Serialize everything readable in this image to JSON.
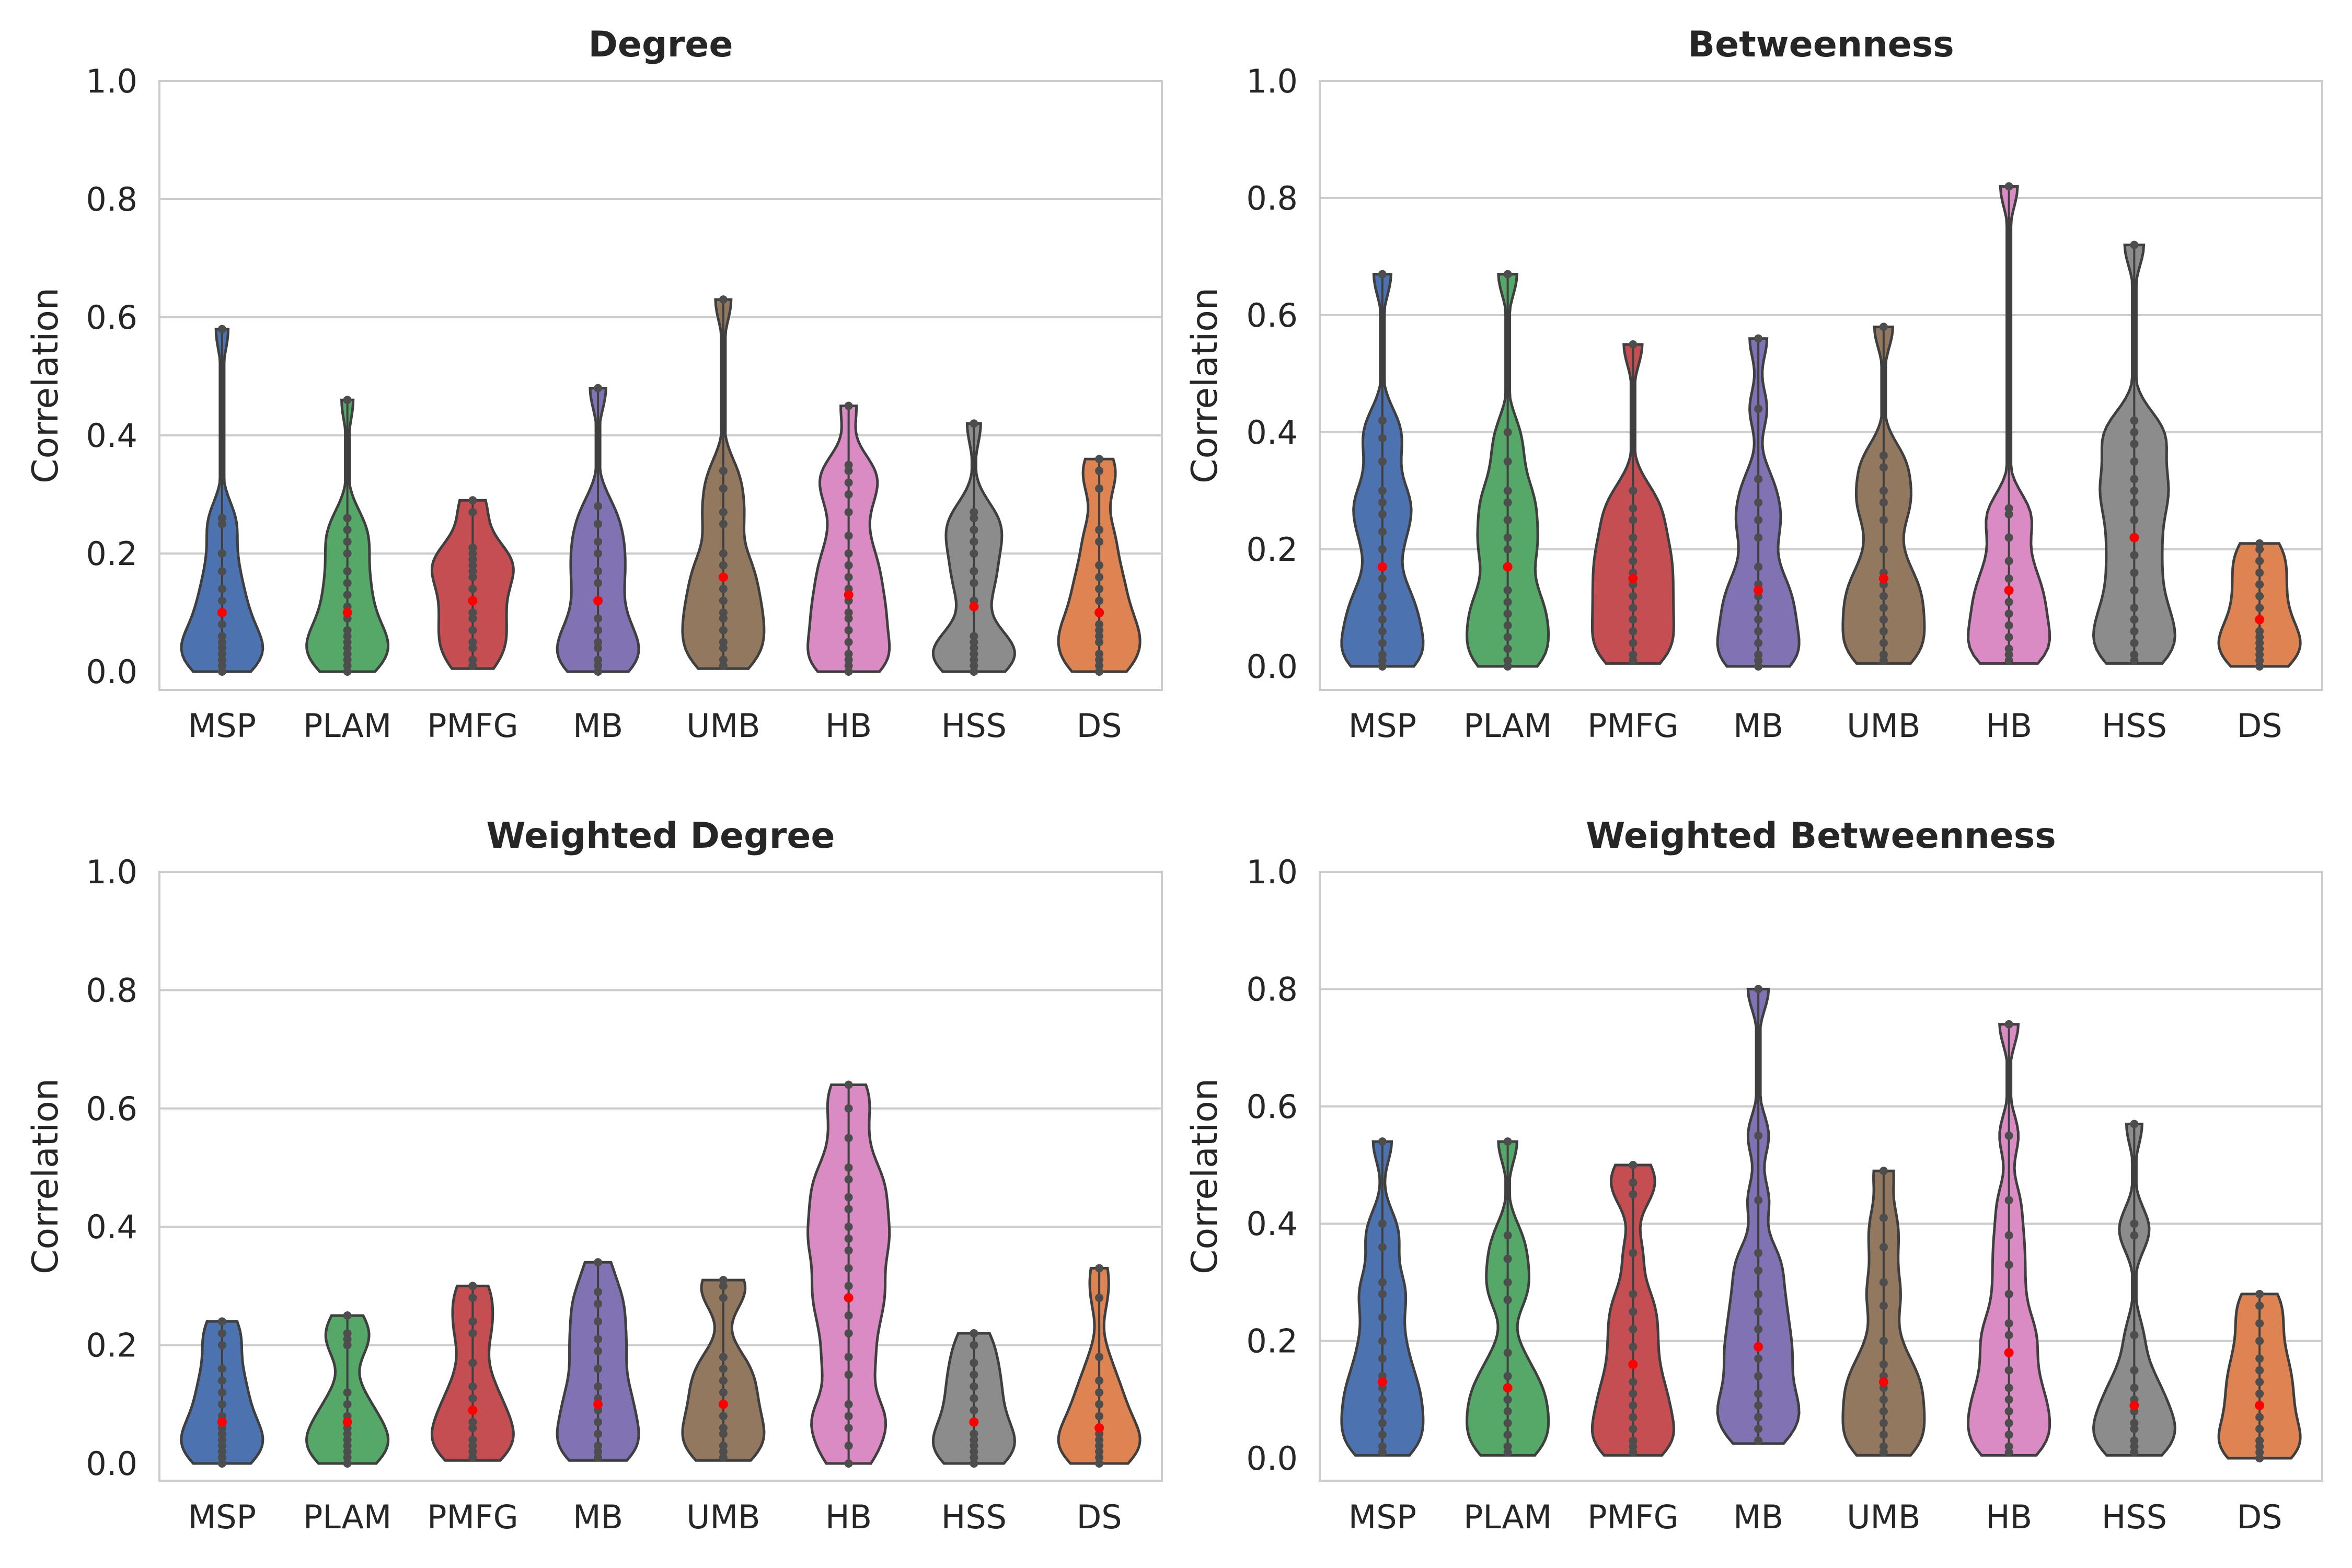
{
  "figure": {
    "ylabel": "Correlation",
    "categories": [
      "MSP",
      "PLAM",
      "PMFG",
      "MB",
      "UMB",
      "HB",
      "HSS",
      "DS"
    ],
    "colors": {
      "MSP": "#4c72b0",
      "PLAM": "#55a868",
      "PMFG": "#c44e52",
      "MB": "#8172b3",
      "UMB": "#937860",
      "HB": "#da8bc3",
      "HSS": "#8c8c8c",
      "DS": "#dd8452"
    },
    "mean_color": "#ff0000",
    "point_color": "#4d4d4d"
  },
  "chart_data": [
    {
      "type": "violin",
      "title": "Degree",
      "ylabel": "Correlation",
      "ylim": [
        0.0,
        1.0
      ],
      "yticks": [
        "0.0",
        "0.2",
        "0.4",
        "0.6",
        "0.8",
        "1.0"
      ],
      "grid": true,
      "categories": [
        "MSP",
        "PLAM",
        "PMFG",
        "MB",
        "UMB",
        "HB",
        "HSS",
        "DS"
      ],
      "series": [
        {
          "category": "MSP",
          "max": 0.58,
          "mean": 0.1,
          "points": [
            0.0,
            0.01,
            0.02,
            0.03,
            0.04,
            0.05,
            0.06,
            0.08,
            0.1,
            0.12,
            0.14,
            0.17,
            0.2,
            0.25,
            0.26,
            0.58
          ]
        },
        {
          "category": "PLAM",
          "max": 0.46,
          "mean": 0.1,
          "points": [
            0.0,
            0.01,
            0.02,
            0.03,
            0.04,
            0.05,
            0.06,
            0.07,
            0.09,
            0.11,
            0.13,
            0.15,
            0.17,
            0.2,
            0.22,
            0.24,
            0.26,
            0.46
          ]
        },
        {
          "category": "PMFG",
          "max": 0.29,
          "mean": 0.12,
          "points": [
            0.01,
            0.02,
            0.04,
            0.05,
            0.07,
            0.09,
            0.1,
            0.12,
            0.14,
            0.16,
            0.17,
            0.18,
            0.19,
            0.2,
            0.21,
            0.27,
            0.29
          ]
        },
        {
          "category": "MB",
          "max": 0.48,
          "mean": 0.12,
          "points": [
            0.0,
            0.01,
            0.02,
            0.04,
            0.05,
            0.07,
            0.09,
            0.12,
            0.15,
            0.17,
            0.2,
            0.22,
            0.25,
            0.28,
            0.48
          ]
        },
        {
          "category": "UMB",
          "max": 0.63,
          "mean": 0.16,
          "points": [
            0.01,
            0.02,
            0.04,
            0.05,
            0.07,
            0.09,
            0.1,
            0.12,
            0.14,
            0.16,
            0.18,
            0.2,
            0.25,
            0.27,
            0.31,
            0.34,
            0.63
          ]
        },
        {
          "category": "HB",
          "max": 0.45,
          "mean": 0.13,
          "points": [
            0.0,
            0.01,
            0.02,
            0.03,
            0.05,
            0.07,
            0.09,
            0.1,
            0.12,
            0.14,
            0.16,
            0.18,
            0.2,
            0.23,
            0.27,
            0.3,
            0.32,
            0.34,
            0.35,
            0.45
          ]
        },
        {
          "category": "HSS",
          "max": 0.42,
          "mean": 0.11,
          "points": [
            0.0,
            0.01,
            0.02,
            0.03,
            0.04,
            0.05,
            0.06,
            0.12,
            0.15,
            0.17,
            0.2,
            0.22,
            0.24,
            0.26,
            0.27,
            0.42
          ]
        },
        {
          "category": "DS",
          "max": 0.36,
          "mean": 0.1,
          "points": [
            0.0,
            0.01,
            0.02,
            0.03,
            0.05,
            0.06,
            0.07,
            0.08,
            0.1,
            0.12,
            0.14,
            0.16,
            0.18,
            0.22,
            0.24,
            0.31,
            0.34,
            0.36
          ]
        }
      ]
    },
    {
      "type": "violin",
      "title": "Betweenness",
      "ylabel": "Correlation",
      "ylim": [
        0.0,
        1.0
      ],
      "yticks": [
        "0.0",
        "0.2",
        "0.4",
        "0.6",
        "0.8",
        "1.0"
      ],
      "grid": true,
      "categories": [
        "MSP",
        "PLAM",
        "PMFG",
        "MB",
        "UMB",
        "HB",
        "HSS",
        "DS"
      ],
      "series": [
        {
          "category": "MSP",
          "max": 0.67,
          "mean": 0.17,
          "points": [
            0.0,
            0.01,
            0.02,
            0.04,
            0.06,
            0.08,
            0.1,
            0.12,
            0.15,
            0.2,
            0.23,
            0.26,
            0.28,
            0.3,
            0.35,
            0.39,
            0.42,
            0.67
          ]
        },
        {
          "category": "PLAM",
          "max": 0.67,
          "mean": 0.17,
          "points": [
            0.0,
            0.01,
            0.03,
            0.05,
            0.07,
            0.09,
            0.11,
            0.13,
            0.17,
            0.2,
            0.22,
            0.25,
            0.28,
            0.3,
            0.35,
            0.4,
            0.67
          ]
        },
        {
          "category": "PMFG",
          "max": 0.55,
          "mean": 0.15,
          "points": [
            0.01,
            0.02,
            0.04,
            0.06,
            0.08,
            0.1,
            0.12,
            0.14,
            0.16,
            0.18,
            0.2,
            0.22,
            0.25,
            0.27,
            0.3,
            0.55
          ]
        },
        {
          "category": "MB",
          "max": 0.56,
          "mean": 0.13,
          "points": [
            0.0,
            0.01,
            0.02,
            0.04,
            0.06,
            0.08,
            0.1,
            0.12,
            0.14,
            0.17,
            0.22,
            0.25,
            0.28,
            0.32,
            0.44,
            0.56
          ]
        },
        {
          "category": "UMB",
          "max": 0.58,
          "mean": 0.15,
          "points": [
            0.01,
            0.02,
            0.04,
            0.06,
            0.08,
            0.1,
            0.12,
            0.14,
            0.16,
            0.2,
            0.25,
            0.28,
            0.3,
            0.34,
            0.36,
            0.58
          ]
        },
        {
          "category": "HB",
          "max": 0.82,
          "mean": 0.13,
          "points": [
            0.01,
            0.02,
            0.03,
            0.05,
            0.07,
            0.09,
            0.11,
            0.13,
            0.15,
            0.18,
            0.22,
            0.26,
            0.27,
            0.82
          ]
        },
        {
          "category": "HSS",
          "max": 0.72,
          "mean": 0.22,
          "points": [
            0.01,
            0.02,
            0.04,
            0.06,
            0.08,
            0.1,
            0.13,
            0.16,
            0.19,
            0.22,
            0.25,
            0.28,
            0.3,
            0.32,
            0.35,
            0.38,
            0.4,
            0.42,
            0.72
          ]
        },
        {
          "category": "DS",
          "max": 0.21,
          "mean": 0.08,
          "points": [
            0.0,
            0.01,
            0.02,
            0.03,
            0.04,
            0.05,
            0.06,
            0.08,
            0.1,
            0.12,
            0.14,
            0.16,
            0.18,
            0.2,
            0.21
          ]
        }
      ]
    },
    {
      "type": "violin",
      "title": "Weighted Degree",
      "ylabel": "Correlation",
      "ylim": [
        0.0,
        1.0
      ],
      "yticks": [
        "0.0",
        "0.2",
        "0.4",
        "0.6",
        "0.8",
        "1.0"
      ],
      "grid": true,
      "categories": [
        "MSP",
        "PLAM",
        "PMFG",
        "MB",
        "UMB",
        "HB",
        "HSS",
        "DS"
      ],
      "series": [
        {
          "category": "MSP",
          "max": 0.24,
          "mean": 0.07,
          "points": [
            0.0,
            0.01,
            0.02,
            0.03,
            0.04,
            0.05,
            0.06,
            0.08,
            0.1,
            0.12,
            0.14,
            0.16,
            0.2,
            0.22,
            0.24
          ]
        },
        {
          "category": "PLAM",
          "max": 0.25,
          "mean": 0.07,
          "points": [
            0.0,
            0.01,
            0.02,
            0.03,
            0.04,
            0.05,
            0.06,
            0.08,
            0.1,
            0.12,
            0.2,
            0.21,
            0.22,
            0.25
          ]
        },
        {
          "category": "PMFG",
          "max": 0.3,
          "mean": 0.09,
          "points": [
            0.01,
            0.02,
            0.03,
            0.04,
            0.06,
            0.07,
            0.09,
            0.11,
            0.13,
            0.17,
            0.22,
            0.24,
            0.28,
            0.3
          ]
        },
        {
          "category": "MB",
          "max": 0.34,
          "mean": 0.1,
          "points": [
            0.01,
            0.02,
            0.03,
            0.05,
            0.07,
            0.09,
            0.11,
            0.13,
            0.16,
            0.19,
            0.21,
            0.24,
            0.27,
            0.29,
            0.34
          ]
        },
        {
          "category": "UMB",
          "max": 0.31,
          "mean": 0.1,
          "points": [
            0.01,
            0.02,
            0.03,
            0.05,
            0.06,
            0.08,
            0.1,
            0.12,
            0.14,
            0.16,
            0.18,
            0.28,
            0.3,
            0.31
          ]
        },
        {
          "category": "HB",
          "max": 0.64,
          "mean": 0.28,
          "points": [
            0.0,
            0.03,
            0.06,
            0.08,
            0.1,
            0.15,
            0.18,
            0.22,
            0.25,
            0.28,
            0.3,
            0.33,
            0.36,
            0.38,
            0.4,
            0.43,
            0.45,
            0.48,
            0.5,
            0.55,
            0.6,
            0.64
          ]
        },
        {
          "category": "HSS",
          "max": 0.22,
          "mean": 0.07,
          "points": [
            0.0,
            0.01,
            0.02,
            0.03,
            0.04,
            0.05,
            0.07,
            0.09,
            0.11,
            0.13,
            0.15,
            0.17,
            0.2,
            0.22
          ]
        },
        {
          "category": "DS",
          "max": 0.33,
          "mean": 0.06,
          "points": [
            0.0,
            0.01,
            0.02,
            0.03,
            0.04,
            0.05,
            0.06,
            0.08,
            0.1,
            0.12,
            0.14,
            0.18,
            0.28,
            0.33
          ]
        }
      ]
    },
    {
      "type": "violin",
      "title": "Weighted Betweenness",
      "ylabel": "Correlation",
      "ylim": [
        0.0,
        1.0
      ],
      "yticks": [
        "0.0",
        "0.2",
        "0.4",
        "0.6",
        "0.8",
        "1.0"
      ],
      "grid": true,
      "categories": [
        "MSP",
        "PLAM",
        "PMFG",
        "MB",
        "UMB",
        "HB",
        "HSS",
        "DS"
      ],
      "series": [
        {
          "category": "MSP",
          "max": 0.54,
          "mean": 0.13,
          "points": [
            0.01,
            0.02,
            0.04,
            0.06,
            0.08,
            0.1,
            0.12,
            0.14,
            0.17,
            0.2,
            0.24,
            0.28,
            0.3,
            0.36,
            0.4,
            0.54
          ]
        },
        {
          "category": "PLAM",
          "max": 0.54,
          "mean": 0.12,
          "points": [
            0.01,
            0.02,
            0.04,
            0.06,
            0.08,
            0.1,
            0.12,
            0.14,
            0.18,
            0.27,
            0.3,
            0.34,
            0.38,
            0.54
          ]
        },
        {
          "category": "PMFG",
          "max": 0.5,
          "mean": 0.16,
          "points": [
            0.01,
            0.02,
            0.03,
            0.05,
            0.07,
            0.09,
            0.11,
            0.13,
            0.16,
            0.19,
            0.22,
            0.25,
            0.28,
            0.35,
            0.45,
            0.47,
            0.5
          ]
        },
        {
          "category": "MB",
          "max": 0.8,
          "mean": 0.19,
          "points": [
            0.03,
            0.05,
            0.07,
            0.09,
            0.11,
            0.14,
            0.17,
            0.19,
            0.22,
            0.25,
            0.28,
            0.32,
            0.35,
            0.44,
            0.55,
            0.8
          ]
        },
        {
          "category": "UMB",
          "max": 0.49,
          "mean": 0.13,
          "points": [
            0.01,
            0.02,
            0.04,
            0.06,
            0.08,
            0.1,
            0.12,
            0.14,
            0.16,
            0.2,
            0.26,
            0.3,
            0.36,
            0.41,
            0.49
          ]
        },
        {
          "category": "HB",
          "max": 0.74,
          "mean": 0.18,
          "points": [
            0.01,
            0.02,
            0.04,
            0.06,
            0.08,
            0.1,
            0.12,
            0.15,
            0.18,
            0.21,
            0.23,
            0.28,
            0.33,
            0.38,
            0.44,
            0.55,
            0.74
          ]
        },
        {
          "category": "HSS",
          "max": 0.57,
          "mean": 0.09,
          "points": [
            0.01,
            0.02,
            0.03,
            0.05,
            0.06,
            0.08,
            0.1,
            0.12,
            0.15,
            0.21,
            0.38,
            0.4,
            0.57
          ]
        },
        {
          "category": "DS",
          "max": 0.28,
          "mean": 0.09,
          "points": [
            0.0,
            0.01,
            0.02,
            0.03,
            0.05,
            0.07,
            0.09,
            0.11,
            0.13,
            0.15,
            0.17,
            0.2,
            0.23,
            0.26,
            0.28
          ]
        }
      ]
    }
  ]
}
